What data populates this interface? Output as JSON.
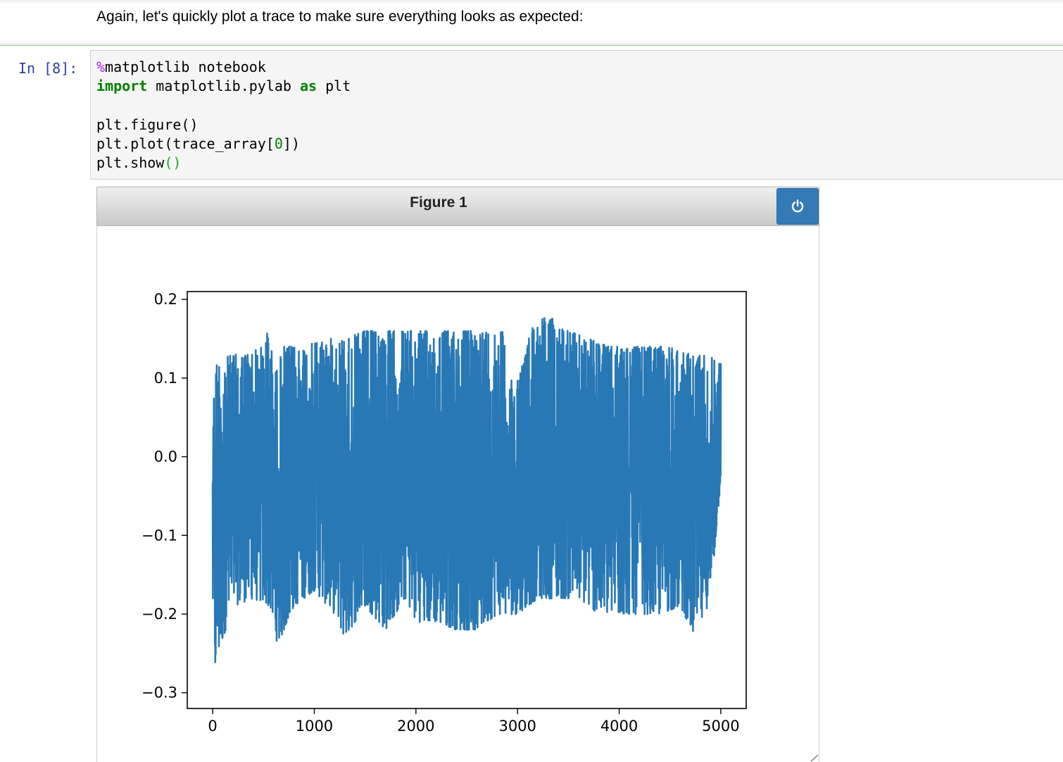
{
  "markdown": {
    "text": "Again, let's quickly plot a trace to make sure everything looks as expected:"
  },
  "cell": {
    "prompt": "In [8]:",
    "code": {
      "magic_prefix": "%",
      "line1_rest": "matplotlib notebook",
      "kw_import": "import",
      "line2_mid": " matplotlib.pylab ",
      "kw_as": "as",
      "line2_end": " plt",
      "line3": "plt.figure()",
      "line4_start": "plt.plot(trace_array[",
      "line4_num": "0",
      "line4_end": "])",
      "line5_start": "plt.show",
      "line5_parens": "()"
    }
  },
  "figure": {
    "title": "Figure 1",
    "close_icon": "power-icon",
    "button_color": "#337ab7"
  },
  "chart_data": {
    "type": "line",
    "title": "",
    "xlabel": "",
    "ylabel": "",
    "xlim": [
      -250,
      5250
    ],
    "ylim": [
      -0.32,
      0.21
    ],
    "x_ticks": [
      0,
      1000,
      2000,
      3000,
      4000,
      5000
    ],
    "x_tick_labels": [
      "0",
      "1000",
      "2000",
      "3000",
      "4000",
      "5000"
    ],
    "y_ticks": [
      0.2,
      0.1,
      0.0,
      -0.1,
      -0.2,
      -0.3
    ],
    "y_tick_labels": [
      "0.2",
      "0.1",
      "0.0",
      "−0.1",
      "−0.2",
      "−0.3"
    ],
    "series_color": "#2878b5",
    "grid": false,
    "series": [
      {
        "x_start": 0,
        "x_end": 5000,
        "envelope_upper": [
          [
            0,
            0.06
          ],
          [
            30,
            0.12
          ],
          [
            100,
            0.125
          ],
          [
            200,
            0.13
          ],
          [
            300,
            0.13
          ],
          [
            400,
            0.135
          ],
          [
            500,
            0.14
          ],
          [
            560,
            0.17
          ],
          [
            600,
            0.1
          ],
          [
            700,
            0.14
          ],
          [
            900,
            0.14
          ],
          [
            1100,
            0.15
          ],
          [
            1300,
            0.15
          ],
          [
            1500,
            0.16
          ],
          [
            1700,
            0.16
          ],
          [
            1900,
            0.16
          ],
          [
            2100,
            0.16
          ],
          [
            2300,
            0.16
          ],
          [
            2500,
            0.16
          ],
          [
            2700,
            0.16
          ],
          [
            2850,
            0.16
          ],
          [
            2950,
            0.09
          ],
          [
            3050,
            0.12
          ],
          [
            3150,
            0.17
          ],
          [
            3300,
            0.18
          ],
          [
            3500,
            0.16
          ],
          [
            3700,
            0.15
          ],
          [
            3900,
            0.14
          ],
          [
            4100,
            0.14
          ],
          [
            4300,
            0.14
          ],
          [
            4500,
            0.14
          ],
          [
            4700,
            0.13
          ],
          [
            4850,
            0.13
          ],
          [
            5000,
            0.12
          ]
        ],
        "envelope_lower": [
          [
            0,
            -0.18
          ],
          [
            10,
            -0.29
          ],
          [
            30,
            -0.27
          ],
          [
            80,
            -0.24
          ],
          [
            200,
            -0.19
          ],
          [
            400,
            -0.18
          ],
          [
            560,
            -0.19
          ],
          [
            640,
            -0.24
          ],
          [
            800,
            -0.19
          ],
          [
            1000,
            -0.17
          ],
          [
            1200,
            -0.2
          ],
          [
            1300,
            -0.23
          ],
          [
            1500,
            -0.19
          ],
          [
            1700,
            -0.22
          ],
          [
            1900,
            -0.18
          ],
          [
            2000,
            -0.21
          ],
          [
            2200,
            -0.21
          ],
          [
            2400,
            -0.22
          ],
          [
            2600,
            -0.22
          ],
          [
            2800,
            -0.2
          ],
          [
            3000,
            -0.2
          ],
          [
            3200,
            -0.18
          ],
          [
            3400,
            -0.18
          ],
          [
            3600,
            -0.18
          ],
          [
            3800,
            -0.2
          ],
          [
            4000,
            -0.2
          ],
          [
            4200,
            -0.2
          ],
          [
            4400,
            -0.2
          ],
          [
            4600,
            -0.19
          ],
          [
            4750,
            -0.23
          ],
          [
            4900,
            -0.18
          ],
          [
            5000,
            -0.03
          ]
        ]
      }
    ]
  }
}
